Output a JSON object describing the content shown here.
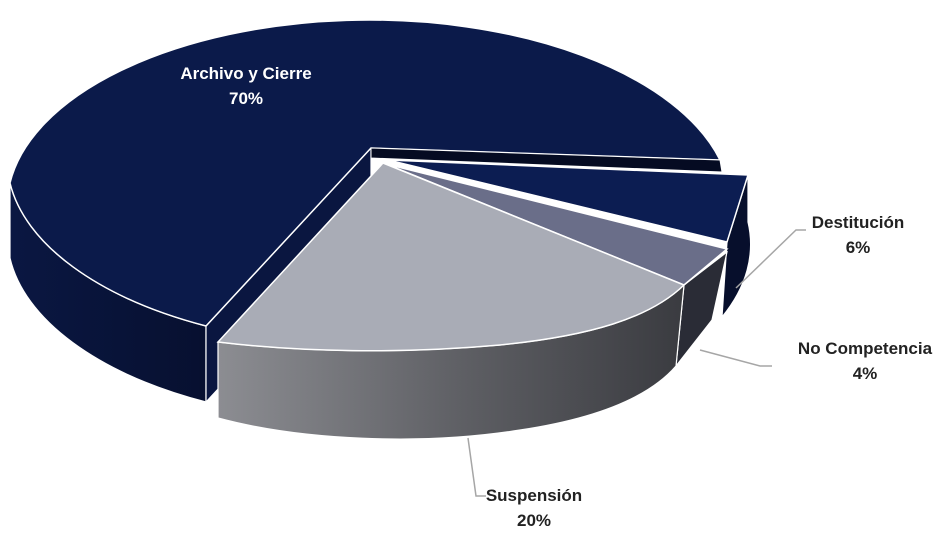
{
  "chart_data": {
    "type": "pie",
    "title": "",
    "slices": [
      {
        "label": "Archivo y Cierre",
        "value": 70,
        "value_label": "70%",
        "color": "#0b1a4a"
      },
      {
        "label": "Destitución",
        "value": 6,
        "value_label": "6%",
        "color": "#0c1d52"
      },
      {
        "label": "No Competencia",
        "value": 4,
        "value_label": "4%",
        "color": "#6a6e89"
      },
      {
        "label": "Suspensión",
        "value": 20,
        "value_label": "20%",
        "color": "#a9acb6"
      }
    ],
    "style": "3d-exploded",
    "legend": "none"
  }
}
